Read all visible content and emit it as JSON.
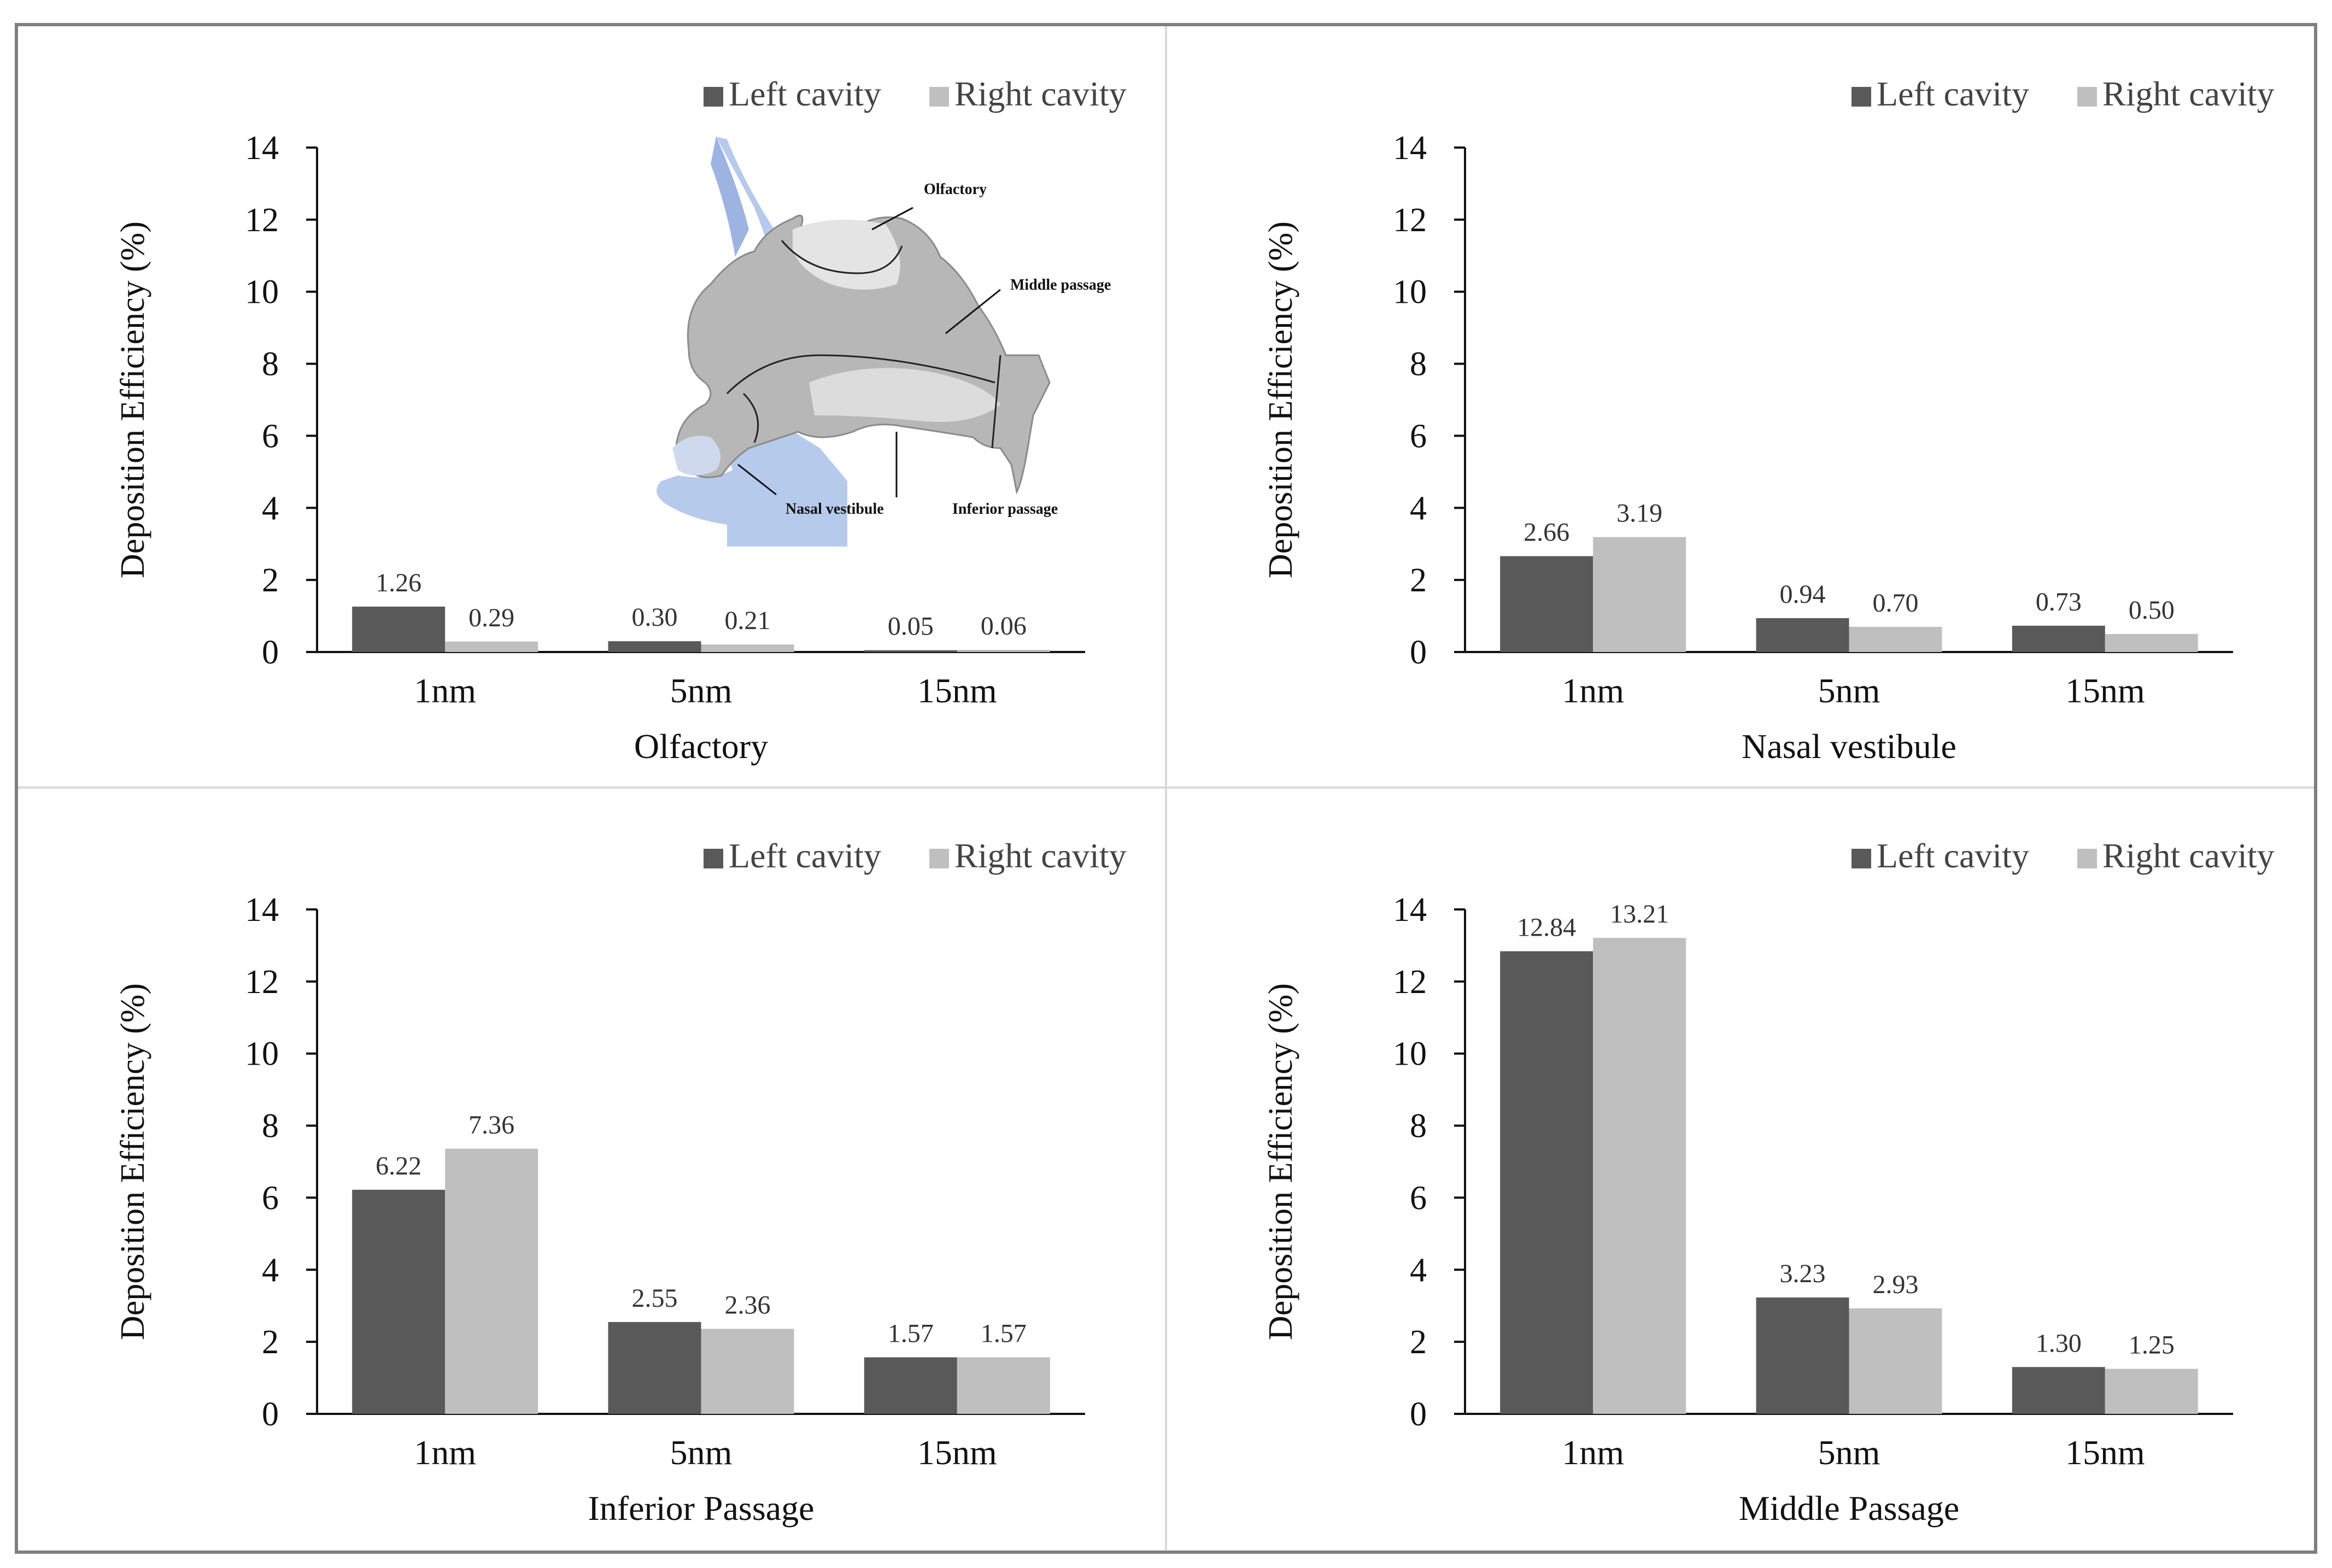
{
  "colors": {
    "left": "#595959",
    "right": "#bfbfbf",
    "axis": "#111111",
    "frame": "#7f7f7f",
    "panel_border": "#d9d9d9",
    "inset_blue": "#9db8e6",
    "inset_blue_dark": "#5b82d0",
    "inset_gray": "#b7b7b7"
  },
  "legend": {
    "left": "Left cavity",
    "right": "Right cavity"
  },
  "inset": {
    "labels": {
      "olfactory": "Olfactory",
      "middle": "Middle passage",
      "vestibule": "Nasal vestibule",
      "inferior": "Inferior passage"
    }
  },
  "chart_data": [
    {
      "type": "bar",
      "title": "",
      "xlabel": "Olfactory",
      "ylabel": "Deposition Efficiency (%)",
      "ylim": [
        0,
        14
      ],
      "yticks": [
        0,
        2,
        4,
        6,
        8,
        10,
        12,
        14
      ],
      "categories": [
        "1nm",
        "5nm",
        "15nm"
      ],
      "series": [
        {
          "name": "Left cavity",
          "values": [
            1.26,
            0.3,
            0.05
          ],
          "labels": [
            "1.26",
            "0.30",
            "0.05"
          ]
        },
        {
          "name": "Right cavity",
          "values": [
            0.29,
            0.21,
            0.06
          ],
          "labels": [
            "0.29",
            "0.21",
            "0.06"
          ]
        }
      ],
      "legend_position": "top-right"
    },
    {
      "type": "bar",
      "title": "",
      "xlabel": "Nasal vestibule",
      "ylabel": "Deposition Efficiency (%)",
      "ylim": [
        0,
        14
      ],
      "yticks": [
        0,
        2,
        4,
        6,
        8,
        10,
        12,
        14
      ],
      "categories": [
        "1nm",
        "5nm",
        "15nm"
      ],
      "series": [
        {
          "name": "Left cavity",
          "values": [
            2.66,
            0.94,
            0.73
          ],
          "labels": [
            "2.66",
            "0.94",
            "0.73"
          ]
        },
        {
          "name": "Right cavity",
          "values": [
            3.19,
            0.7,
            0.5
          ],
          "labels": [
            "3.19",
            "0.70",
            "0.50"
          ]
        }
      ],
      "legend_position": "top-right"
    },
    {
      "type": "bar",
      "title": "",
      "xlabel": "Inferior Passage",
      "ylabel": "Deposition Efficiency (%)",
      "ylim": [
        0,
        14
      ],
      "yticks": [
        0,
        2,
        4,
        6,
        8,
        10,
        12,
        14
      ],
      "categories": [
        "1nm",
        "5nm",
        "15nm"
      ],
      "series": [
        {
          "name": "Left cavity",
          "values": [
            6.22,
            2.55,
            1.57
          ],
          "labels": [
            "6.22",
            "2.55",
            "1.57"
          ]
        },
        {
          "name": "Right cavity",
          "values": [
            7.36,
            2.36,
            1.57
          ],
          "labels": [
            "7.36",
            "2.36",
            "1.57"
          ]
        }
      ],
      "legend_position": "top-right"
    },
    {
      "type": "bar",
      "title": "",
      "xlabel": "Middle Passage",
      "ylabel": "Deposition Efficiency (%)",
      "ylim": [
        0,
        14
      ],
      "yticks": [
        0,
        2,
        4,
        6,
        8,
        10,
        12,
        14
      ],
      "categories": [
        "1nm",
        "5nm",
        "15nm"
      ],
      "series": [
        {
          "name": "Left cavity",
          "values": [
            12.84,
            3.23,
            1.3
          ],
          "labels": [
            "12.84",
            "3.23",
            "1.30"
          ]
        },
        {
          "name": "Right cavity",
          "values": [
            13.21,
            2.93,
            1.25
          ],
          "labels": [
            "13.21",
            "2.93",
            "1.25"
          ]
        }
      ],
      "legend_position": "top-right"
    }
  ]
}
